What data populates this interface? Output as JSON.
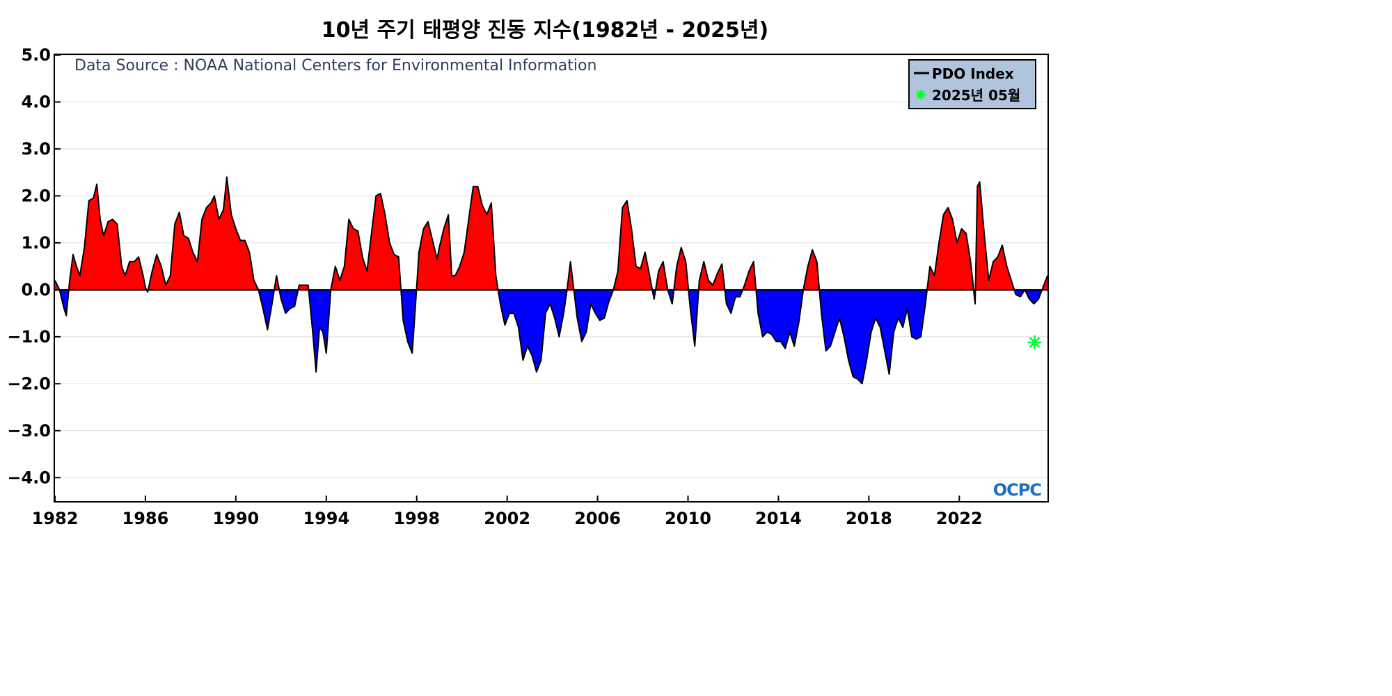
{
  "chart_data": {
    "type": "area",
    "title": "10년 주기 태평양 진동 지수(1982년 - 2025년)",
    "source": "Data Source : NOAA National Centers for Environmental Information",
    "xlabel": "",
    "ylabel": "",
    "xlim": [
      1982.0,
      2025.9
    ],
    "ylim": [
      -4.5,
      5.0
    ],
    "yticks": [
      5.0,
      4.0,
      3.0,
      2.0,
      1.0,
      0.0,
      -1.0,
      -2.0,
      -3.0,
      -4.0
    ],
    "ytick_labels": [
      "5.0",
      "4.0",
      "3.0",
      "2.0",
      "1.0",
      "0.0",
      "−1.0",
      "−2.0",
      "−3.0",
      "−4.0"
    ],
    "xticks": [
      1982,
      1986,
      1990,
      1994,
      1998,
      2002,
      2006,
      2010,
      2014,
      2018,
      2022
    ],
    "xtick_labels": [
      "1982",
      "1986",
      "1990",
      "1994",
      "1998",
      "2002",
      "2006",
      "2010",
      "2014",
      "2018",
      "2022"
    ],
    "grid": true,
    "legend": {
      "position": "top-right",
      "entries": [
        {
          "label": "PDO Index",
          "marker": "line",
          "color": "#000000"
        },
        {
          "label": "2025년 05월",
          "marker": "asterisk",
          "color": "#00ff33"
        }
      ]
    },
    "colors": {
      "positive": "#ff0000",
      "negative": "#0000ff",
      "line": "#000000",
      "zero_line": "#000000",
      "highlight": "#00ff33",
      "legend_bg": "#b0c4de"
    },
    "logo": "OCPC",
    "series": [
      {
        "name": "PDO Index",
        "points": [
          [
            1982.0,
            0.2
          ],
          [
            1982.2,
            0.0
          ],
          [
            1982.4,
            -0.4
          ],
          [
            1982.5,
            -0.55
          ],
          [
            1982.65,
            0.2
          ],
          [
            1982.8,
            0.75
          ],
          [
            1982.95,
            0.5
          ],
          [
            1983.1,
            0.3
          ],
          [
            1983.3,
            0.9
          ],
          [
            1983.5,
            1.9
          ],
          [
            1983.7,
            1.95
          ],
          [
            1983.85,
            2.25
          ],
          [
            1984.0,
            1.5
          ],
          [
            1984.15,
            1.15
          ],
          [
            1984.35,
            1.45
          ],
          [
            1984.55,
            1.5
          ],
          [
            1984.75,
            1.4
          ],
          [
            1984.95,
            0.5
          ],
          [
            1985.1,
            0.3
          ],
          [
            1985.3,
            0.6
          ],
          [
            1985.5,
            0.6
          ],
          [
            1985.7,
            0.7
          ],
          [
            1985.9,
            0.3
          ],
          [
            1986.0,
            0.05
          ],
          [
            1986.1,
            -0.05
          ],
          [
            1986.3,
            0.4
          ],
          [
            1986.5,
            0.75
          ],
          [
            1986.7,
            0.5
          ],
          [
            1986.9,
            0.1
          ],
          [
            1987.1,
            0.3
          ],
          [
            1987.3,
            1.4
          ],
          [
            1987.5,
            1.65
          ],
          [
            1987.7,
            1.15
          ],
          [
            1987.9,
            1.1
          ],
          [
            1988.1,
            0.8
          ],
          [
            1988.3,
            0.6
          ],
          [
            1988.5,
            1.5
          ],
          [
            1988.7,
            1.75
          ],
          [
            1988.9,
            1.85
          ],
          [
            1989.05,
            2.0
          ],
          [
            1989.25,
            1.5
          ],
          [
            1989.45,
            1.7
          ],
          [
            1989.6,
            2.4
          ],
          [
            1989.8,
            1.6
          ],
          [
            1990.0,
            1.3
          ],
          [
            1990.2,
            1.05
          ],
          [
            1990.4,
            1.05
          ],
          [
            1990.6,
            0.8
          ],
          [
            1990.8,
            0.2
          ],
          [
            1991.0,
            0.0
          ],
          [
            1991.2,
            -0.4
          ],
          [
            1991.4,
            -0.85
          ],
          [
            1991.6,
            -0.3
          ],
          [
            1991.8,
            0.3
          ],
          [
            1992.0,
            -0.2
          ],
          [
            1992.2,
            -0.5
          ],
          [
            1992.4,
            -0.4
          ],
          [
            1992.6,
            -0.35
          ],
          [
            1992.8,
            0.1
          ],
          [
            1993.0,
            0.1
          ],
          [
            1993.2,
            0.1
          ],
          [
            1993.4,
            -0.9
          ],
          [
            1993.55,
            -1.75
          ],
          [
            1993.7,
            -0.8
          ],
          [
            1993.85,
            -0.9
          ],
          [
            1994.0,
            -1.35
          ],
          [
            1994.2,
            0.0
          ],
          [
            1994.4,
            0.5
          ],
          [
            1994.6,
            0.2
          ],
          [
            1994.8,
            0.5
          ],
          [
            1995.0,
            1.5
          ],
          [
            1995.2,
            1.3
          ],
          [
            1995.4,
            1.25
          ],
          [
            1995.6,
            0.7
          ],
          [
            1995.8,
            0.4
          ],
          [
            1996.0,
            1.2
          ],
          [
            1996.2,
            2.0
          ],
          [
            1996.4,
            2.05
          ],
          [
            1996.6,
            1.6
          ],
          [
            1996.8,
            1.0
          ],
          [
            1997.0,
            0.75
          ],
          [
            1997.2,
            0.7
          ],
          [
            1997.4,
            -0.65
          ],
          [
            1997.6,
            -1.1
          ],
          [
            1997.8,
            -1.35
          ],
          [
            1997.95,
            -0.3
          ],
          [
            1998.1,
            0.8
          ],
          [
            1998.3,
            1.3
          ],
          [
            1998.5,
            1.45
          ],
          [
            1998.7,
            1.05
          ],
          [
            1998.9,
            0.65
          ],
          [
            1999.0,
            0.9
          ],
          [
            1999.2,
            1.3
          ],
          [
            1999.4,
            1.6
          ],
          [
            1999.55,
            0.3
          ],
          [
            1999.7,
            0.3
          ],
          [
            1999.9,
            0.5
          ],
          [
            2000.1,
            0.8
          ],
          [
            2000.3,
            1.5
          ],
          [
            2000.5,
            2.2
          ],
          [
            2000.7,
            2.2
          ],
          [
            2000.9,
            1.8
          ],
          [
            2001.1,
            1.6
          ],
          [
            2001.3,
            1.85
          ],
          [
            2001.5,
            0.3
          ],
          [
            2001.7,
            -0.3
          ],
          [
            2001.9,
            -0.75
          ],
          [
            2002.1,
            -0.5
          ],
          [
            2002.3,
            -0.5
          ],
          [
            2002.5,
            -0.8
          ],
          [
            2002.7,
            -1.5
          ],
          [
            2002.9,
            -1.2
          ],
          [
            2003.1,
            -1.4
          ],
          [
            2003.3,
            -1.75
          ],
          [
            2003.5,
            -1.5
          ],
          [
            2003.7,
            -0.5
          ],
          [
            2003.9,
            -0.3
          ],
          [
            2004.1,
            -0.6
          ],
          [
            2004.3,
            -1.0
          ],
          [
            2004.5,
            -0.5
          ],
          [
            2004.65,
            0.0
          ],
          [
            2004.8,
            0.6
          ],
          [
            2004.95,
            0.0
          ],
          [
            2005.1,
            -0.6
          ],
          [
            2005.3,
            -1.1
          ],
          [
            2005.5,
            -0.9
          ],
          [
            2005.7,
            -0.3
          ],
          [
            2005.9,
            -0.5
          ],
          [
            2006.1,
            -0.65
          ],
          [
            2006.3,
            -0.6
          ],
          [
            2006.5,
            -0.25
          ],
          [
            2006.7,
            0.0
          ],
          [
            2006.9,
            0.4
          ],
          [
            2007.1,
            1.75
          ],
          [
            2007.3,
            1.9
          ],
          [
            2007.5,
            1.3
          ],
          [
            2007.7,
            0.5
          ],
          [
            2007.9,
            0.45
          ],
          [
            2008.1,
            0.8
          ],
          [
            2008.3,
            0.3
          ],
          [
            2008.5,
            -0.2
          ],
          [
            2008.7,
            0.4
          ],
          [
            2008.9,
            0.6
          ],
          [
            2009.1,
            0.0
          ],
          [
            2009.3,
            -0.3
          ],
          [
            2009.5,
            0.5
          ],
          [
            2009.7,
            0.9
          ],
          [
            2009.9,
            0.6
          ],
          [
            2010.1,
            -0.4
          ],
          [
            2010.3,
            -1.2
          ],
          [
            2010.5,
            0.2
          ],
          [
            2010.7,
            0.6
          ],
          [
            2010.9,
            0.2
          ],
          [
            2011.1,
            0.1
          ],
          [
            2011.3,
            0.35
          ],
          [
            2011.5,
            0.55
          ],
          [
            2011.7,
            -0.3
          ],
          [
            2011.9,
            -0.5
          ],
          [
            2012.1,
            -0.15
          ],
          [
            2012.3,
            -0.15
          ],
          [
            2012.5,
            0.1
          ],
          [
            2012.7,
            0.4
          ],
          [
            2012.9,
            0.6
          ],
          [
            2013.1,
            -0.5
          ],
          [
            2013.3,
            -1.0
          ],
          [
            2013.5,
            -0.9
          ],
          [
            2013.7,
            -0.95
          ],
          [
            2013.9,
            -1.1
          ],
          [
            2014.1,
            -1.1
          ],
          [
            2014.3,
            -1.25
          ],
          [
            2014.5,
            -0.9
          ],
          [
            2014.7,
            -1.2
          ],
          [
            2014.9,
            -0.7
          ],
          [
            2015.1,
            0.0
          ],
          [
            2015.3,
            0.5
          ],
          [
            2015.5,
            0.85
          ],
          [
            2015.7,
            0.6
          ],
          [
            2015.9,
            -0.5
          ],
          [
            2016.1,
            -1.3
          ],
          [
            2016.3,
            -1.2
          ],
          [
            2016.5,
            -0.9
          ],
          [
            2016.7,
            -0.6
          ],
          [
            2016.9,
            -1.0
          ],
          [
            2017.1,
            -1.5
          ],
          [
            2017.3,
            -1.85
          ],
          [
            2017.5,
            -1.9
          ],
          [
            2017.7,
            -2.0
          ],
          [
            2017.9,
            -1.5
          ],
          [
            2018.1,
            -0.9
          ],
          [
            2018.3,
            -0.6
          ],
          [
            2018.5,
            -0.8
          ],
          [
            2018.7,
            -1.3
          ],
          [
            2018.9,
            -1.8
          ],
          [
            2019.1,
            -0.9
          ],
          [
            2019.3,
            -0.6
          ],
          [
            2019.5,
            -0.8
          ],
          [
            2019.7,
            -0.4
          ],
          [
            2019.9,
            -1.0
          ],
          [
            2020.1,
            -1.05
          ],
          [
            2020.3,
            -1.0
          ],
          [
            2020.5,
            -0.3
          ],
          [
            2020.7,
            0.5
          ],
          [
            2020.9,
            0.3
          ],
          [
            2021.1,
            1.0
          ],
          [
            2021.3,
            1.6
          ],
          [
            2021.5,
            1.75
          ],
          [
            2021.7,
            1.5
          ],
          [
            2021.9,
            1.0
          ],
          [
            2022.1,
            1.3
          ],
          [
            2022.3,
            1.2
          ],
          [
            2022.5,
            0.6
          ],
          [
            2022.7,
            -0.3
          ],
          [
            2022.8,
            2.2
          ],
          [
            2022.9,
            2.3
          ],
          [
            2023.1,
            1.2
          ],
          [
            2023.3,
            0.2
          ],
          [
            2023.5,
            0.6
          ],
          [
            2023.7,
            0.7
          ],
          [
            2023.9,
            0.95
          ],
          [
            2024.1,
            0.5
          ],
          [
            2024.3,
            0.2
          ],
          [
            2024.5,
            -0.1
          ],
          [
            2024.7,
            -0.15
          ],
          [
            2024.9,
            0.0
          ],
          [
            2025.1,
            -0.2
          ],
          [
            2025.3,
            -0.3
          ],
          [
            2025.5,
            -0.2
          ],
          [
            2025.7,
            0.05
          ],
          [
            2025.9,
            0.3
          ]
        ]
      }
    ],
    "highlight_point": {
      "x": 2025.33,
      "y": -1.12,
      "label": "2025년 05월"
    }
  }
}
